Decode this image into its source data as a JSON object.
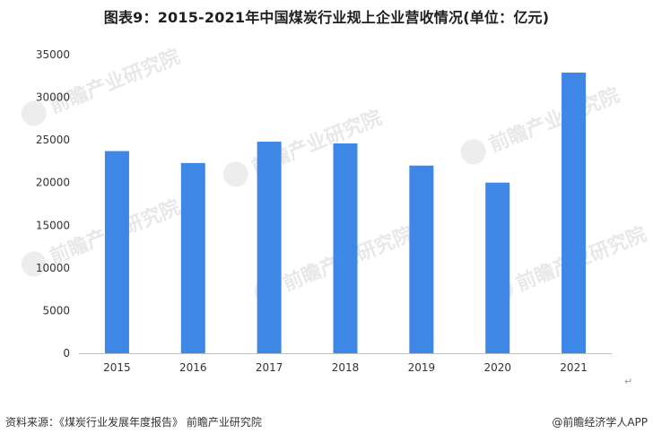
{
  "title": "图表9：2015-2021年中国煤炭行业规上企业营收情况(单位：亿元)",
  "footer": {
    "source": "资料来源：《煤炭行业发展年度报告》 前瞻产业研究院",
    "brand": "@前瞻经济学人APP"
  },
  "watermark": {
    "text": "前瞻产业研究院",
    "icon": "qianzhan-logo-icon"
  },
  "colors": {
    "bar": "#3f87e6",
    "axis": "#bfbfbf",
    "tick_text": "#333333"
  },
  "chart_data": {
    "type": "bar",
    "categories": [
      "2015",
      "2016",
      "2017",
      "2018",
      "2019",
      "2020",
      "2021"
    ],
    "values": [
      23700,
      22300,
      24800,
      24600,
      22000,
      20000,
      32900
    ],
    "yticks": [
      0,
      5000,
      10000,
      15000,
      20000,
      25000,
      30000,
      35000
    ],
    "ylim": [
      0,
      35000
    ],
    "xlabel": "",
    "ylabel": "",
    "grid": false,
    "legend": "none"
  }
}
